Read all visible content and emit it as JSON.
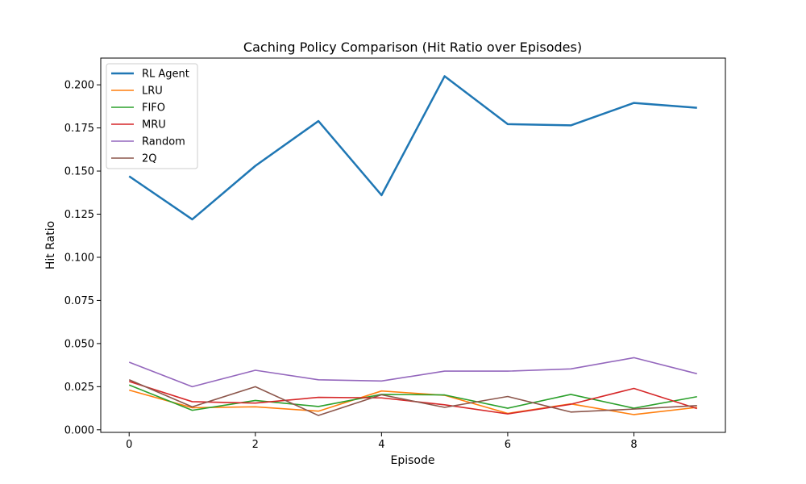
{
  "chart_data": {
    "type": "line",
    "title": "Caching Policy Comparison (Hit Ratio over Episodes)",
    "xlabel": "Episode",
    "ylabel": "Hit Ratio",
    "x": [
      0,
      1,
      2,
      3,
      4,
      5,
      6,
      7,
      8,
      9
    ],
    "xlim": [
      -0.45,
      9.45
    ],
    "ylim": [
      -0.0015,
      0.2155
    ],
    "xticks": [
      0,
      2,
      4,
      6,
      8
    ],
    "yticks": [
      0.0,
      0.025,
      0.05,
      0.075,
      0.1,
      0.125,
      0.15,
      0.175,
      0.2
    ],
    "ytick_labels": [
      "0.000",
      "0.025",
      "0.050",
      "0.075",
      "0.100",
      "0.125",
      "0.150",
      "0.175",
      "0.200"
    ],
    "grid": false,
    "legend_position": "top-left",
    "series": [
      {
        "name": "RL Agent",
        "color": "#1f77b4",
        "values": [
          0.147,
          0.122,
          0.153,
          0.179,
          0.136,
          0.205,
          0.1772,
          0.1765,
          0.1895,
          0.1867
        ]
      },
      {
        "name": "LRU",
        "color": "#ff7f0e",
        "values": [
          0.023,
          0.0128,
          0.0133,
          0.0108,
          0.0225,
          0.02,
          0.0095,
          0.015,
          0.0088,
          0.013
        ]
      },
      {
        "name": "FIFO",
        "color": "#2ca02c",
        "values": [
          0.026,
          0.0113,
          0.017,
          0.0135,
          0.0205,
          0.0202,
          0.0125,
          0.0205,
          0.0125,
          0.0192
        ]
      },
      {
        "name": "MRU",
        "color": "#d62728",
        "values": [
          0.028,
          0.0163,
          0.0155,
          0.0188,
          0.0185,
          0.0145,
          0.0092,
          0.0148,
          0.024,
          0.0123
        ]
      },
      {
        "name": "Random",
        "color": "#9467bd",
        "values": [
          0.0392,
          0.025,
          0.0345,
          0.029,
          0.0283,
          0.034,
          0.034,
          0.0353,
          0.0418,
          0.0325
        ]
      },
      {
        "name": "2Q",
        "color": "#8c564b",
        "values": [
          0.029,
          0.0133,
          0.025,
          0.0083,
          0.0203,
          0.013,
          0.0193,
          0.0103,
          0.012,
          0.014
        ]
      }
    ]
  }
}
